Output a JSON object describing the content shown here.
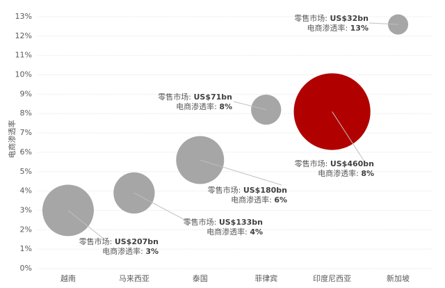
{
  "chart_data": {
    "type": "bubble",
    "y_label": "电商渗透率",
    "categories": [
      "越南",
      "马来西亚",
      "泰国",
      "菲律宾",
      "印度尼西亚",
      "新加坡"
    ],
    "series": [
      {
        "values": [
          3.0,
          3.9,
          5.6,
          8.2,
          8.1,
          12.6
        ],
        "value_labels": [
          "3%",
          "4%",
          "6%",
          "8%",
          "8%",
          "13%"
        ],
        "sizes": [
          207,
          133,
          180,
          71,
          460,
          32
        ],
        "size_labels": [
          "US$207bn",
          "US$133bn",
          "US$180bn",
          "US$71bn",
          "US$460bn",
          "US$32bn"
        ],
        "colors": [
          "#a6a6a6",
          "#a6a6a6",
          "#a6a6a6",
          "#a6a6a6",
          "#b00000",
          "#a6a6a6"
        ]
      }
    ],
    "size_label_prefix": "零售市场: ",
    "value_label_prefix": "电商渗透率: ",
    "ylim": [
      0,
      13
    ],
    "yticks": [
      {
        "value": 0,
        "label": "0%"
      },
      {
        "value": 1,
        "label": "1%"
      },
      {
        "value": 2,
        "label": "2%"
      },
      {
        "value": 3,
        "label": "3%"
      },
      {
        "value": 4,
        "label": "4%"
      },
      {
        "value": 5,
        "label": "5%"
      },
      {
        "value": 6,
        "label": "6%"
      },
      {
        "value": 7,
        "label": "7%"
      },
      {
        "value": 8,
        "label": "8%"
      },
      {
        "value": 9,
        "label": "9%"
      },
      {
        "value": 10,
        "label": "10%"
      },
      {
        "value": 11,
        "label": "11%"
      },
      {
        "value": 12,
        "label": "12%"
      },
      {
        "value": 13,
        "label": "13%"
      }
    ],
    "grid": true
  }
}
